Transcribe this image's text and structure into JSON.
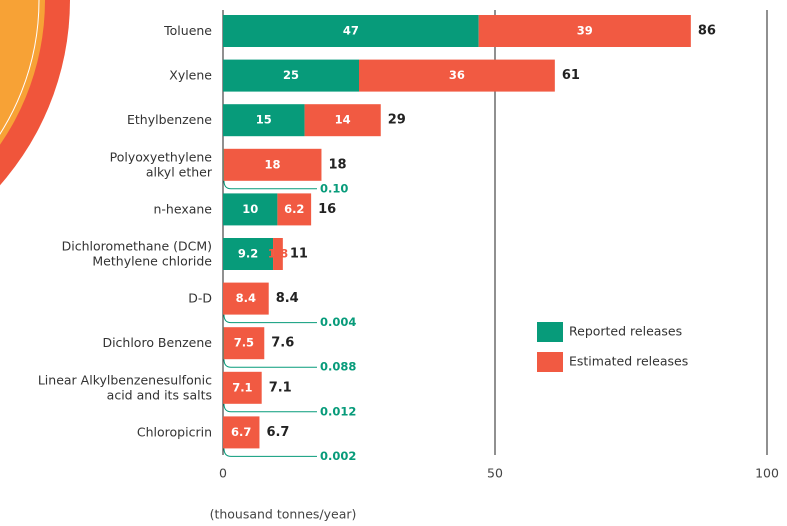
{
  "chart_data": {
    "type": "stacked_barh",
    "x_label": "(thousand tonnes/year)",
    "categories": [
      "Toluene",
      "Xylene",
      "Ethylbenzene",
      "Polyoxyethylene\nalkyl ether",
      "n-hexane",
      "Dichloromethane (DCM)\nMethylene chloride",
      "D-D",
      "Dichloro Benzene",
      "Linear Alkylbenzenesulfonic\nacid and its salts",
      "Chloropicrin"
    ],
    "series": [
      {
        "name": "Reported releases",
        "color": "#079b7a",
        "values": [
          47,
          25,
          15,
          0.1,
          10,
          9.2,
          0.004,
          0.088,
          0.012,
          0.002
        ],
        "value_labels": [
          "47",
          "25",
          "15",
          "0.10",
          "10",
          "9.2",
          "0.004",
          "0.088",
          "0.012",
          "0.002"
        ]
      },
      {
        "name": "Estimated releases",
        "color": "#f15a42",
        "values": [
          39,
          36,
          14,
          18,
          6.2,
          1.8,
          8.4,
          7.5,
          7.1,
          6.7
        ]
      }
    ],
    "totals": [
      86,
      61,
      29,
      18,
      16,
      11,
      8.4,
      7.6,
      7.1,
      6.7
    ],
    "xlim": [
      0,
      100
    ],
    "xticks": [
      0,
      50,
      100
    ],
    "grid": true
  }
}
